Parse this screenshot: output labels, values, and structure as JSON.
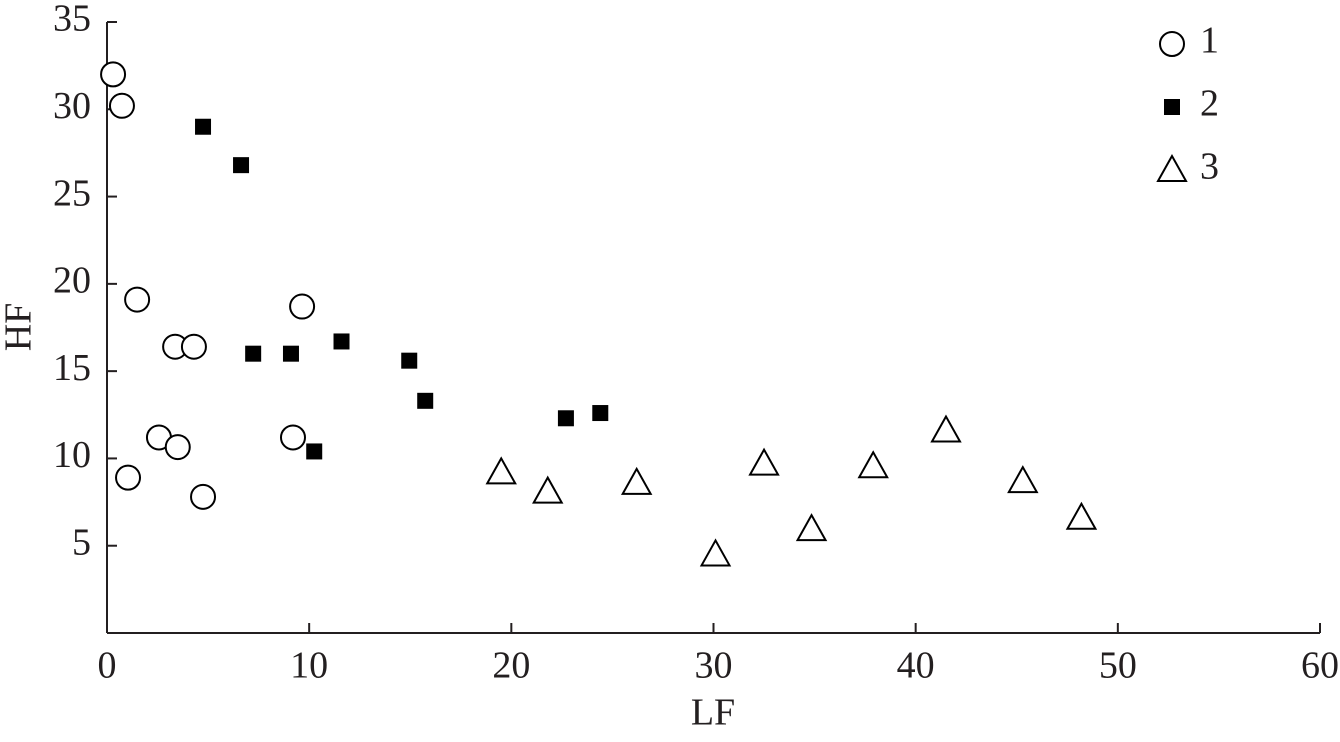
{
  "chart_data": {
    "type": "scatter",
    "x_label": "LF",
    "y_label": "HF",
    "xlim": [
      0,
      60
    ],
    "xticks": [
      0,
      10,
      20,
      30,
      40,
      50,
      60
    ],
    "ylim": [
      0,
      35
    ],
    "yticks": [
      5,
      10,
      15,
      20,
      25,
      30,
      35
    ],
    "legend": "top-right",
    "series": [
      {
        "name": "1",
        "color": "#000000",
        "marker": "circle",
        "x": [
          0.3,
          0.74,
          1.49,
          3.37,
          4.3,
          2.57,
          3.5,
          1.04,
          4.75,
          9.65,
          9.2
        ],
        "values": [
          32.0,
          30.2,
          19.1,
          16.4,
          16.4,
          11.2,
          10.65,
          8.9,
          7.8,
          18.7,
          11.2
        ]
      },
      {
        "name": "2",
        "color": "#000000",
        "marker": "square",
        "x": [
          4.75,
          6.63,
          7.23,
          9.1,
          11.6,
          10.25,
          14.95,
          15.74,
          22.7,
          24.4
        ],
        "values": [
          29.0,
          26.8,
          16.0,
          16.0,
          16.7,
          10.4,
          15.6,
          13.3,
          12.3,
          12.6
        ]
      },
      {
        "name": "3",
        "color": "#000000",
        "marker": "triangle",
        "x": [
          19.5,
          21.8,
          26.2,
          30.1,
          32.5,
          34.85,
          37.9,
          41.5,
          45.3,
          48.2
        ],
        "values": [
          9.2,
          8.1,
          8.6,
          4.5,
          9.7,
          5.95,
          9.55,
          11.6,
          8.7,
          6.6
        ]
      }
    ]
  }
}
